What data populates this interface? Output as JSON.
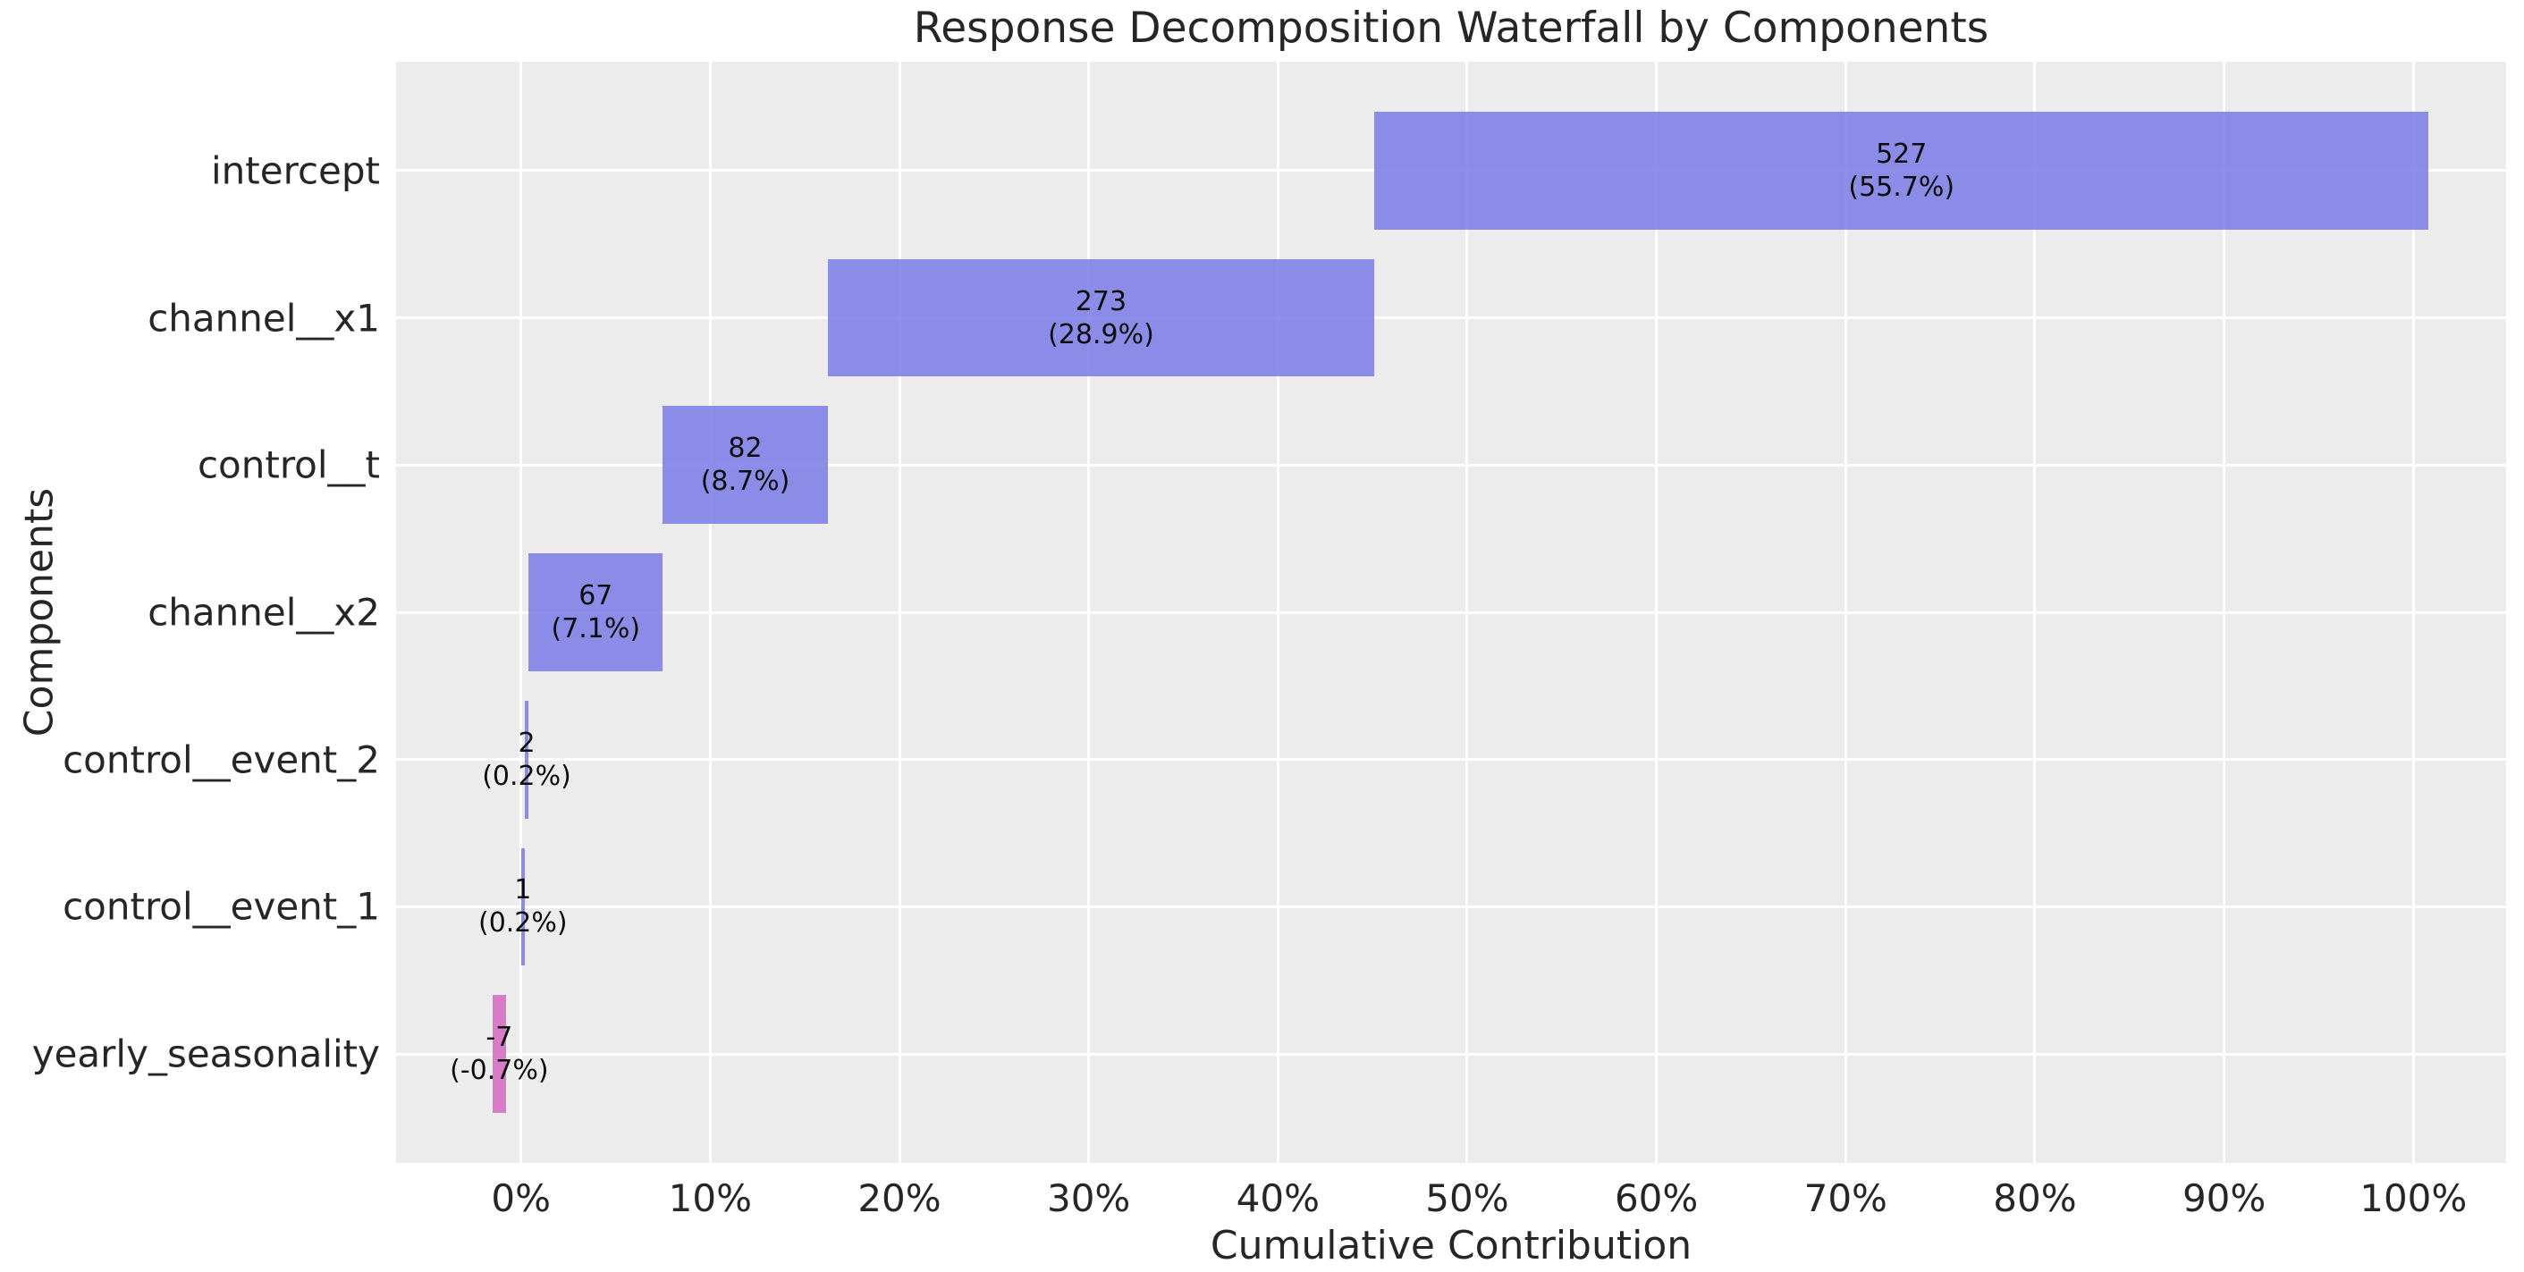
{
  "title": "Response Decomposition Waterfall by Components",
  "xlabel": "Cumulative Contribution",
  "ylabel": "Components",
  "colors": {
    "positive_bar": "rgba(129,130,231,0.9)",
    "negative_bar": "rgba(214,112,196,0.9)",
    "plot_background": "#ececec",
    "gridline": "#ffffff",
    "text": "#262626",
    "bar_label_text": "#0d0d0d"
  },
  "chart_data": {
    "type": "bar",
    "subtype": "waterfall",
    "orientation": "horizontal",
    "title": "Response Decomposition Waterfall by Components",
    "xlabel": "Cumulative Contribution",
    "ylabel": "Components",
    "grid": true,
    "legend": false,
    "categories": [
      "intercept",
      "channel__x1",
      "control__t",
      "channel__x2",
      "control__event_2",
      "control__event_1",
      "yearly_seasonality"
    ],
    "values": [
      527,
      273,
      82,
      67,
      2,
      1,
      -7
    ],
    "percentages": [
      55.7,
      28.9,
      8.7,
      7.1,
      0.2,
      0.2,
      -0.7
    ],
    "bar_labels": [
      {
        "value": "527",
        "pct": "(55.7%)"
      },
      {
        "value": "273",
        "pct": "(28.9%)"
      },
      {
        "value": "82",
        "pct": "(8.7%)"
      },
      {
        "value": "67",
        "pct": "(7.1%)"
      },
      {
        "value": "2",
        "pct": "(0.2%)"
      },
      {
        "value": "1",
        "pct": "(0.2%)"
      },
      {
        "value": "-7",
        "pct": "(-0.7%)"
      }
    ],
    "bar_spans_pct": [
      [
        45.1,
        100.8
      ],
      [
        16.2,
        45.1
      ],
      [
        7.5,
        16.2
      ],
      [
        0.4,
        7.5
      ],
      [
        0.2,
        0.4
      ],
      [
        0.0,
        0.2
      ],
      [
        -1.5,
        -0.8
      ]
    ],
    "x_tick_values": [
      0,
      10,
      20,
      30,
      40,
      50,
      60,
      70,
      80,
      90,
      100
    ],
    "x_tick_labels": [
      "0%",
      "10%",
      "20%",
      "30%",
      "40%",
      "50%",
      "60%",
      "70%",
      "80%",
      "90%",
      "100%"
    ],
    "xlim": [
      -6.6,
      104.9
    ]
  }
}
